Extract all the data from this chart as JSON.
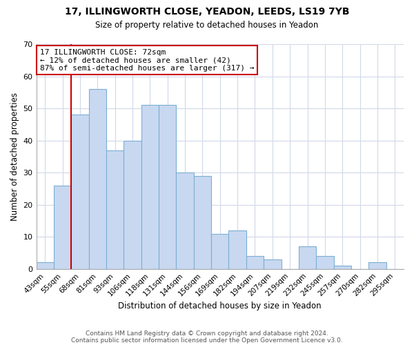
{
  "title1": "17, ILLINGWORTH CLOSE, YEADON, LEEDS, LS19 7YB",
  "title2": "Size of property relative to detached houses in Yeadon",
  "xlabel": "Distribution of detached houses by size in Yeadon",
  "ylabel": "Number of detached properties",
  "footer1": "Contains HM Land Registry data © Crown copyright and database right 2024.",
  "footer2": "Contains public sector information licensed under the Open Government Licence v3.0.",
  "bin_labels": [
    "43sqm",
    "55sqm",
    "68sqm",
    "81sqm",
    "93sqm",
    "106sqm",
    "118sqm",
    "131sqm",
    "144sqm",
    "156sqm",
    "169sqm",
    "182sqm",
    "194sqm",
    "207sqm",
    "219sqm",
    "232sqm",
    "245sqm",
    "257sqm",
    "270sqm",
    "282sqm",
    "295sqm"
  ],
  "bar_heights": [
    2,
    26,
    48,
    56,
    37,
    40,
    51,
    51,
    30,
    29,
    11,
    12,
    4,
    3,
    0,
    7,
    4,
    1,
    0,
    2,
    0
  ],
  "bar_color": "#c8d8f0",
  "bar_edgecolor": "#7bafd4",
  "vline_x_index": 2,
  "vline_color": "#cc0000",
  "annotation_title": "17 ILLINGWORTH CLOSE: 72sqm",
  "annotation_line1": "← 12% of detached houses are smaller (42)",
  "annotation_line2": "87% of semi-detached houses are larger (317) →",
  "annotation_box_edgecolor": "#cc0000",
  "ylim": [
    0,
    70
  ],
  "yticks": [
    0,
    10,
    20,
    30,
    40,
    50,
    60,
    70
  ],
  "background_color": "#ffffff",
  "grid_color": "#d0d8e8"
}
